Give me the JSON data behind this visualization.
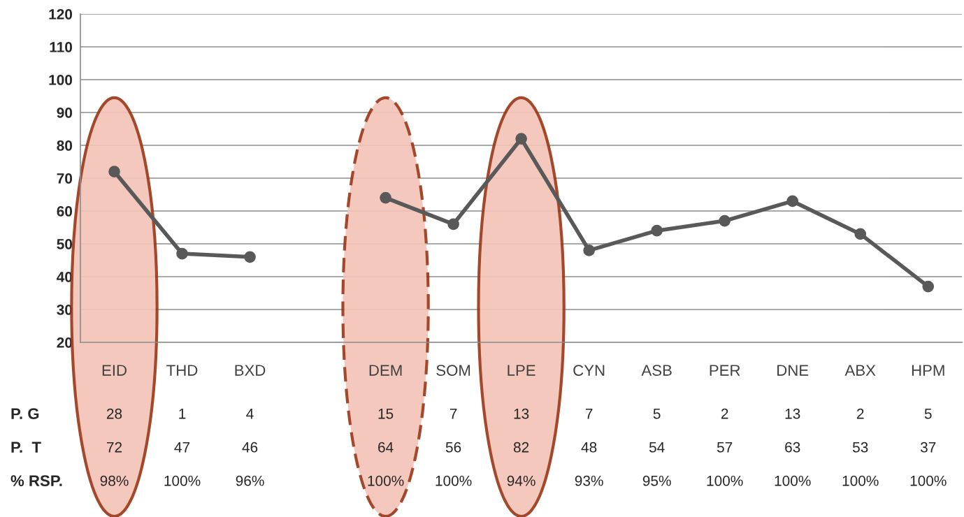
{
  "chart_data": {
    "type": "line",
    "categories": [
      "EID",
      "THD",
      "BXD",
      null,
      "DEM",
      "SOM",
      "LPE",
      "CYN",
      "ASB",
      "PER",
      "DNE",
      "ABX",
      "HPM"
    ],
    "series": [
      {
        "name": "P.  T",
        "color": "#595959",
        "values": [
          72,
          47,
          46,
          null,
          64,
          56,
          82,
          48,
          54,
          57,
          63,
          53,
          37
        ],
        "value_labels": [
          "72",
          "47",
          "46",
          null,
          "64",
          "56",
          "82",
          "48",
          "54",
          "57",
          "63",
          "53",
          "37"
        ]
      }
    ],
    "annotations": [
      "P. G",
      "28",
      "1",
      "4",
      "15",
      "7",
      "13",
      "7",
      "5",
      "2",
      "13",
      "2",
      "5",
      "% RSP.",
      "98%",
      "100%",
      "96%",
      "100%",
      "100%",
      "94%",
      "93%",
      "95%",
      "100%",
      "100%",
      "100%",
      "100%"
    ],
    "ylim": [
      20,
      120
    ],
    "yticks": [
      20,
      30,
      40,
      50,
      60,
      70,
      80,
      90,
      100,
      110,
      120
    ],
    "grid": "y",
    "marker": "circle",
    "line_style": "solid",
    "legend": false
  }
}
